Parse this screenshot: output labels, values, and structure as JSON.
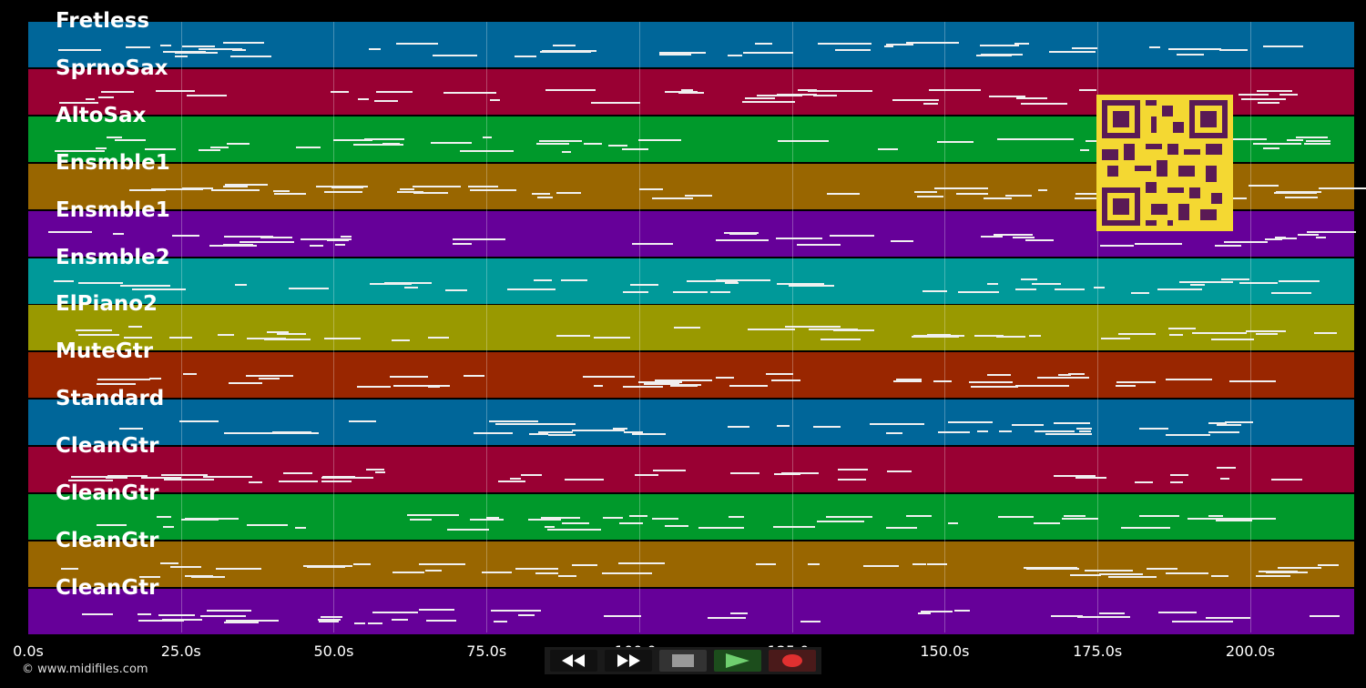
{
  "tracks": [
    {
      "label": "Fretless",
      "color": "#006699"
    },
    {
      "label": "SprnoSax",
      "color": "#990033"
    },
    {
      "label": "AltoSax",
      "color": "#00992b"
    },
    {
      "label": "Ensmble1",
      "color": "#996600"
    },
    {
      "label": "Ensmble1",
      "color": "#660099"
    },
    {
      "label": "Ensmble2",
      "color": "#009999"
    },
    {
      "label": "ElPiano2",
      "color": "#999900"
    },
    {
      "label": "MuteGtr",
      "color": "#992600"
    },
    {
      "label": "Standard",
      "color": "#006699"
    },
    {
      "label": "CleanGtr",
      "color": "#990033"
    },
    {
      "label": "CleanGtr",
      "color": "#00992b"
    },
    {
      "label": "CleanGtr",
      "color": "#996600"
    },
    {
      "label": "CleanGtr",
      "color": "#660099"
    }
  ],
  "time_axis": {
    "ticks": [
      "0.0s",
      "25.0s",
      "50.0s",
      "75.0s",
      "100.0s",
      "125.0s",
      "150.0s",
      "175.0s",
      "200.0s"
    ],
    "tick_values": [
      0,
      25,
      50,
      75,
      100,
      125,
      150,
      175,
      200
    ],
    "max_seconds": 217
  },
  "copyright": "© www.midifiles.com",
  "controls": [
    {
      "name": "rewind-button",
      "icon": "rewind-icon",
      "color": "#ffffff"
    },
    {
      "name": "fast-forward-button",
      "icon": "fast-forward-icon",
      "color": "#ffffff"
    },
    {
      "name": "stop-button",
      "icon": "stop-icon",
      "color": "#999999"
    },
    {
      "name": "play-button",
      "icon": "play-icon",
      "color": "#6fcf6f"
    },
    {
      "name": "record-button",
      "icon": "record-icon",
      "color": "#e03030"
    }
  ]
}
